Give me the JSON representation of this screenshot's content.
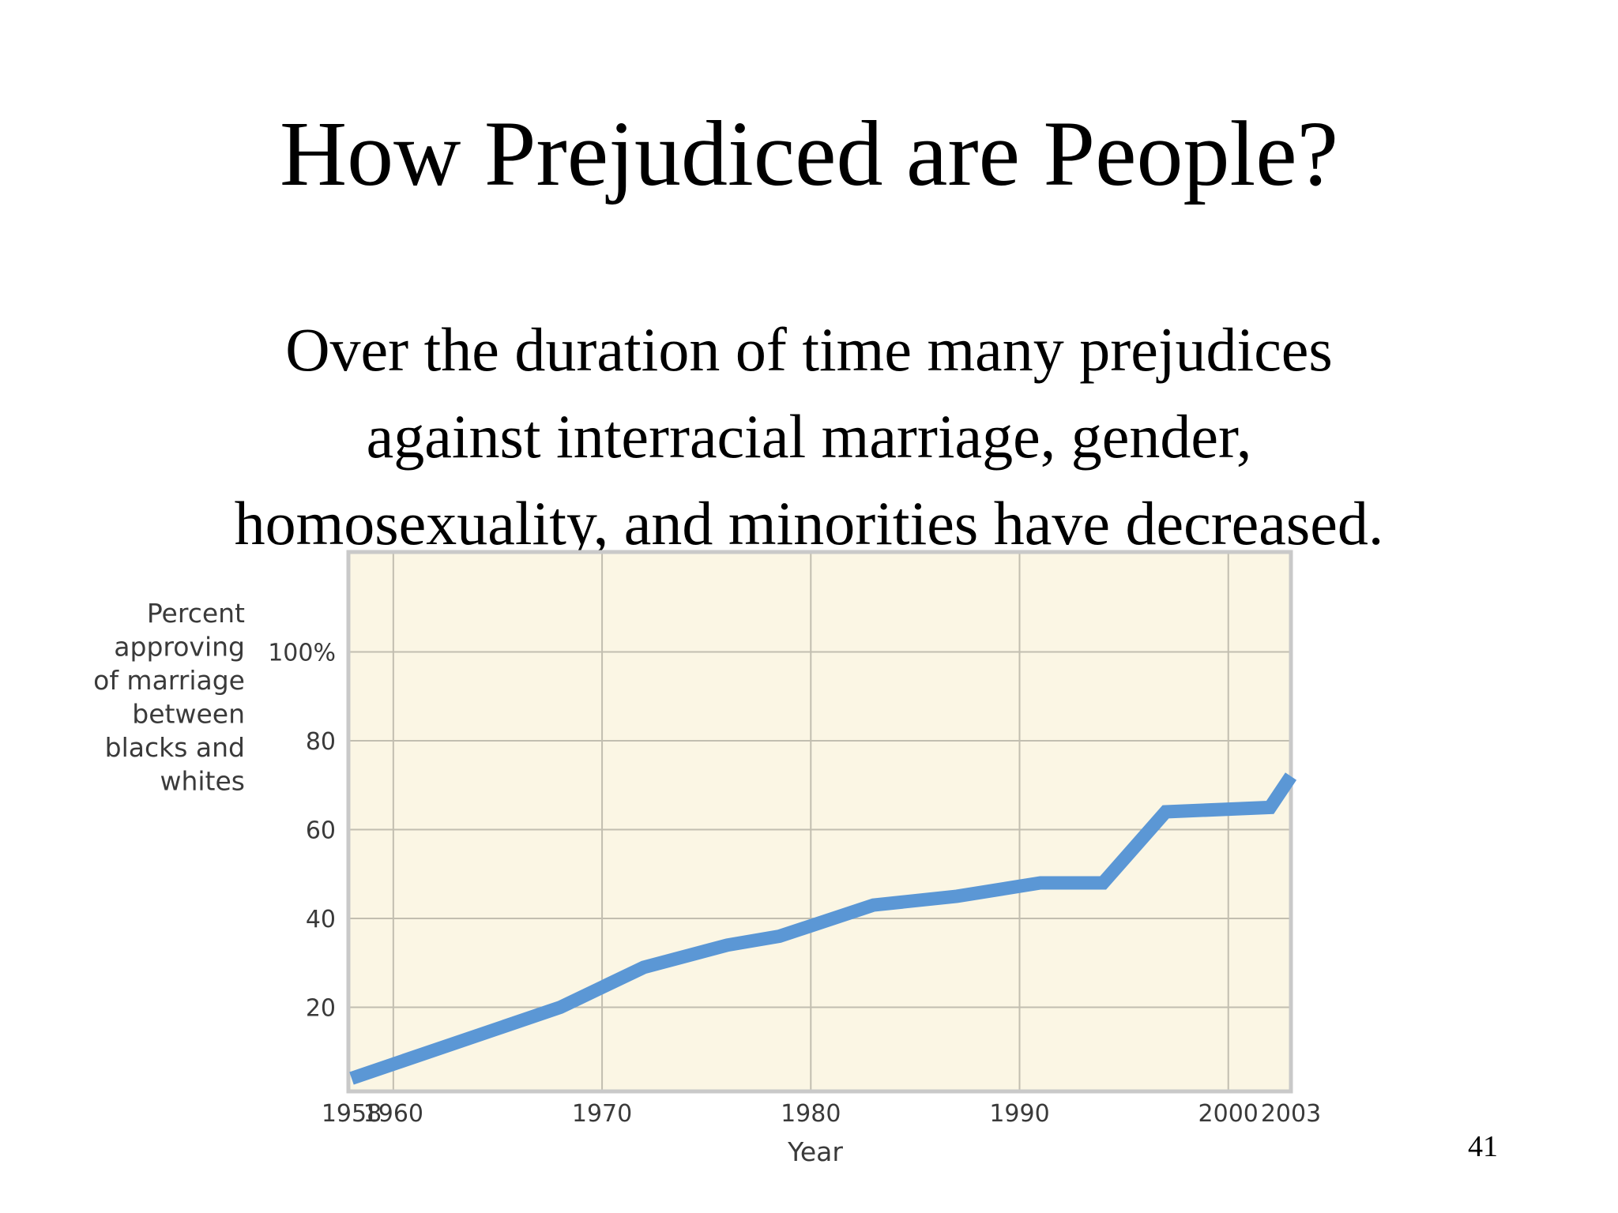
{
  "slide": {
    "title": "How Prejudiced are People?",
    "body_lines": [
      "Over the duration of time many prejudices",
      "against interracial marriage, gender,",
      "homosexuality, and minorities have decreased."
    ],
    "page_number": "41"
  },
  "chart_data": {
    "type": "line",
    "xlabel": "Year",
    "ylabel_lines": [
      "Percent",
      "approving",
      "of marriage",
      "between",
      "blacks and",
      "whites"
    ],
    "x_ticks": [
      1958,
      1960,
      1970,
      1980,
      1990,
      2000,
      2003
    ],
    "x_tick_labels": [
      "1958",
      "1960",
      "1970",
      "1980",
      "1990",
      "2000",
      "2003"
    ],
    "y_ticks": [
      20,
      40,
      60,
      80,
      100
    ],
    "y_tick_labels": [
      "20",
      "40",
      "60",
      "80",
      "100%"
    ],
    "xlim": [
      1958,
      2003
    ],
    "ylim": [
      0,
      120
    ],
    "grid": true,
    "colors": {
      "plot_background": "#fbf6e4",
      "grid": "#c2beb0",
      "frame": "#c9c9c9",
      "line": "#5b97d5"
    },
    "series": [
      {
        "x": [
          1958,
          1968,
          1972,
          1976,
          1978.5,
          1983,
          1987,
          1991,
          1994,
          1997,
          2002,
          2003
        ],
        "values": [
          4,
          20,
          29,
          34,
          36,
          43,
          45,
          48,
          48,
          64,
          65,
          72
        ]
      }
    ]
  }
}
